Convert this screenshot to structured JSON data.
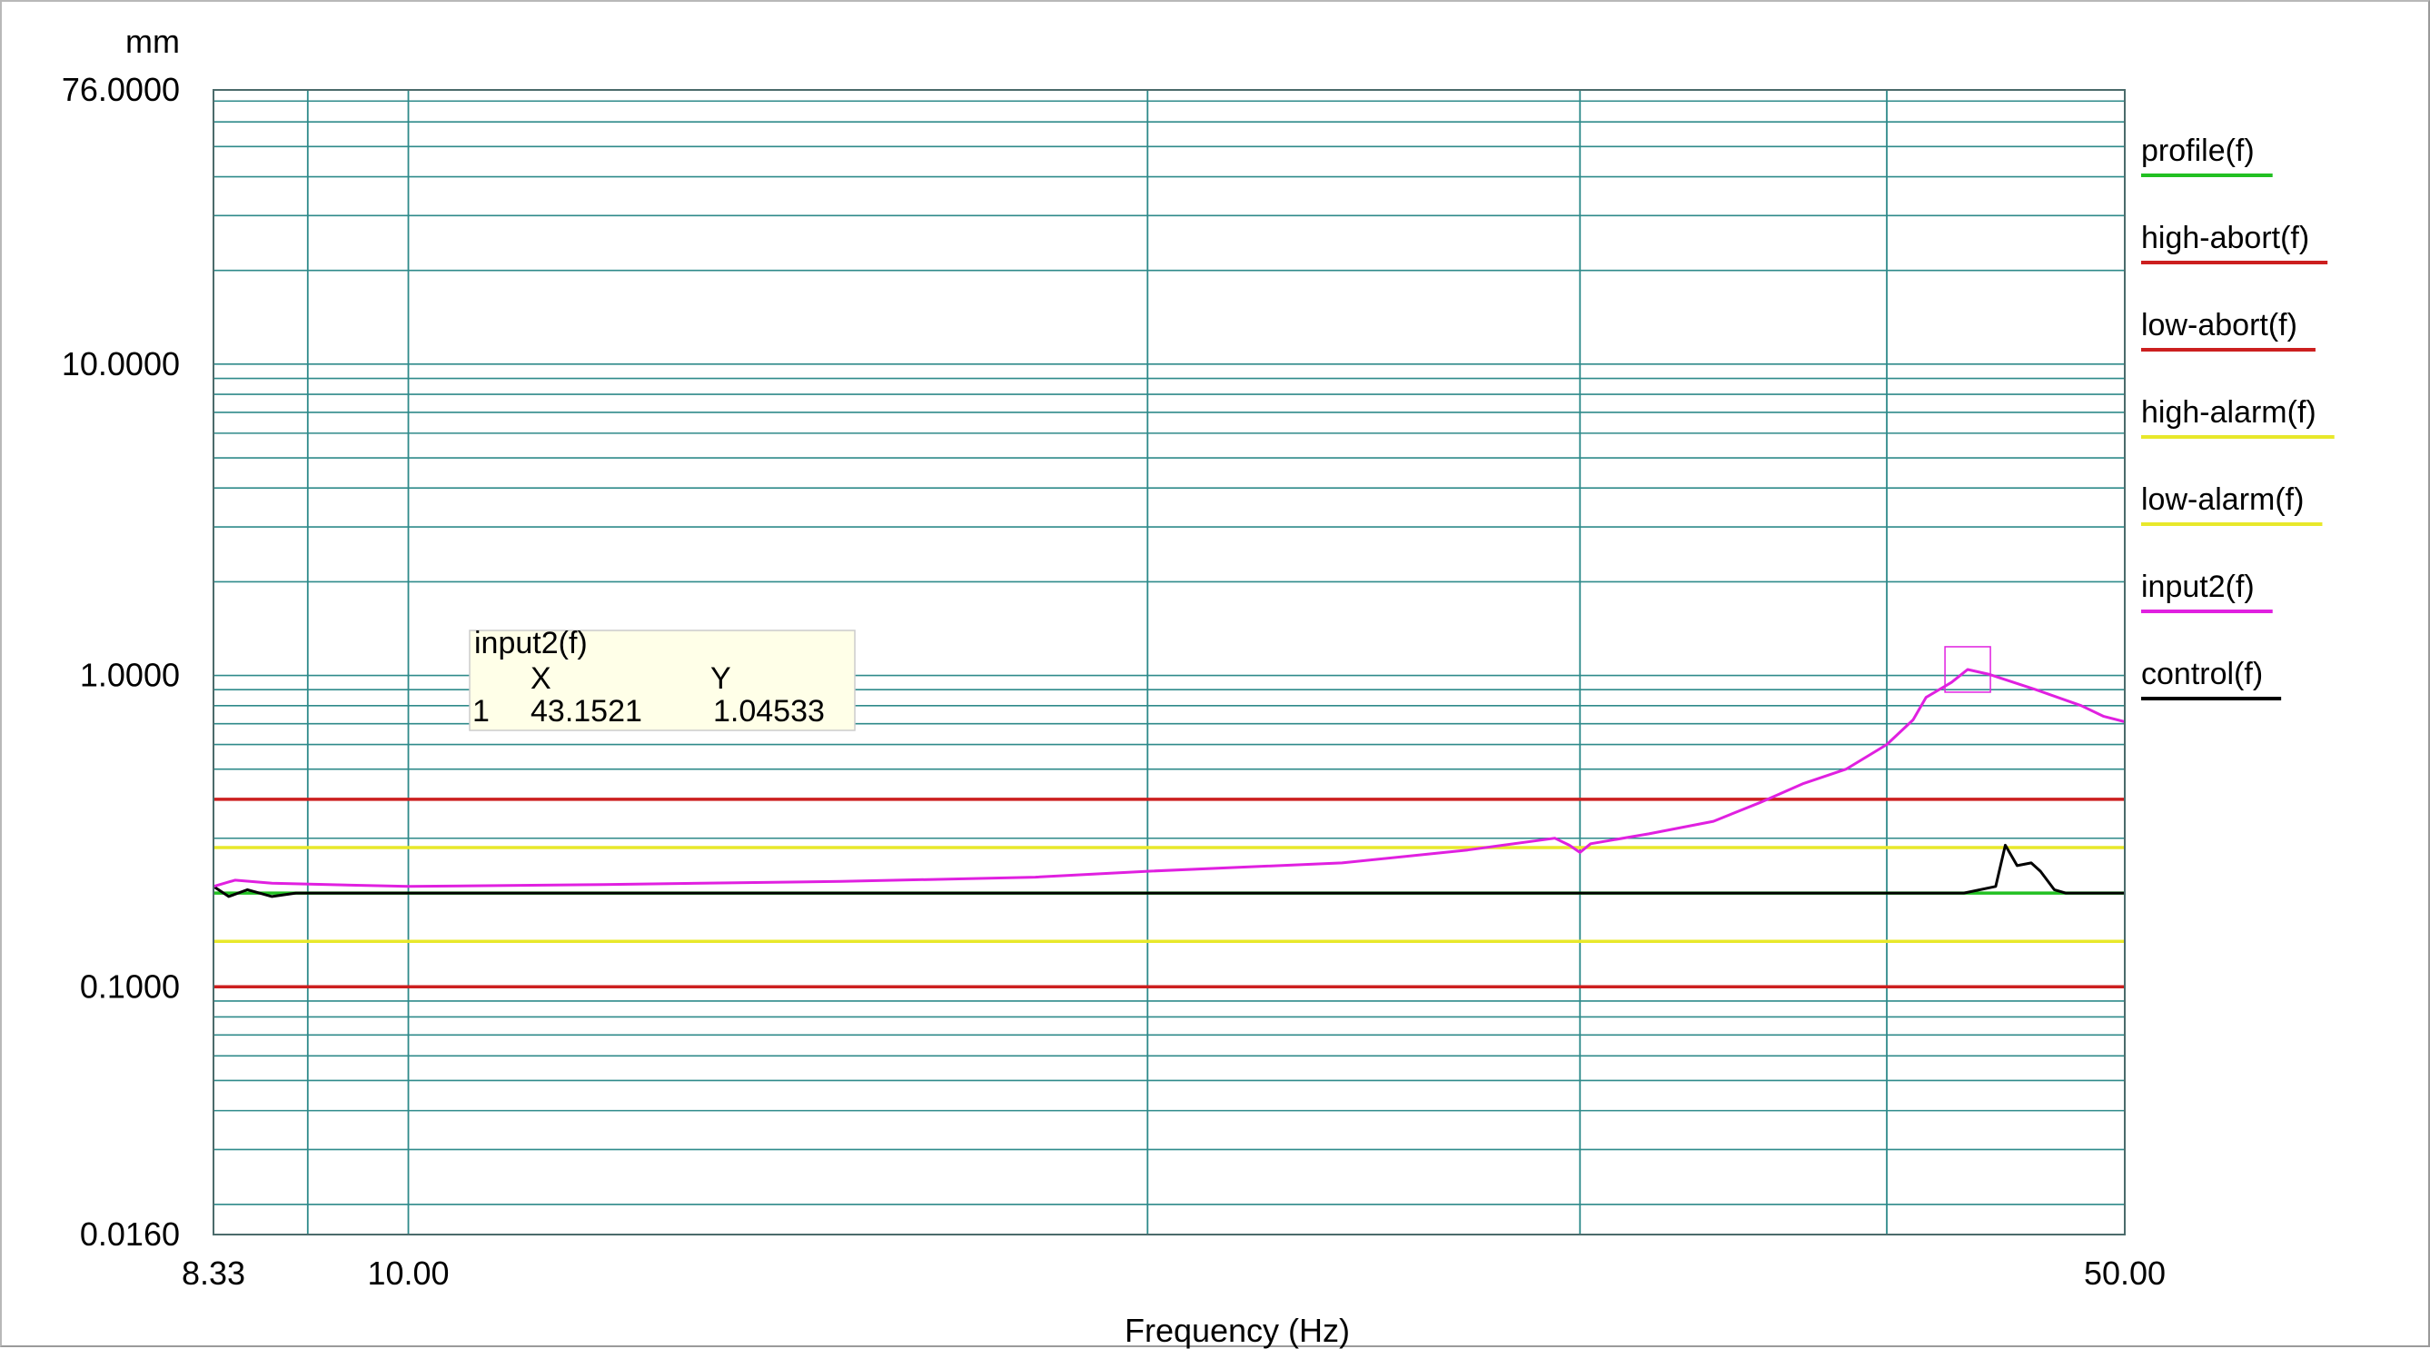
{
  "chart_data": {
    "type": "line",
    "title": "",
    "xlabel": "Frequency (Hz)",
    "ylabel": "mm",
    "x_scale": "log",
    "y_scale": "log",
    "xlim": [
      8.33,
      50.0
    ],
    "ylim": [
      0.016,
      76.0
    ],
    "grid": true,
    "legend_position": "right",
    "y_tick_labels": [
      "76.0000",
      "10.0000",
      "1.0000",
      "0.1000",
      "0.0160"
    ],
    "y_tick_values": [
      76.0,
      10.0,
      1.0,
      0.1,
      0.016
    ],
    "x_tick_labels": [
      "8.33",
      "10.00",
      "50.00"
    ],
    "x_tick_values": [
      8.33,
      10.0,
      50.0
    ],
    "x_grid_values": [
      9.1,
      10.0,
      20.0,
      30.0,
      40.0
    ],
    "series": [
      {
        "name": "profile(f)",
        "color": "#22c022",
        "x": [
          8.33,
          20.0,
          40.0,
          43.0,
          45.0,
          50.0
        ],
        "y": [
          0.2,
          0.2,
          0.2,
          0.2,
          0.2,
          0.2
        ]
      },
      {
        "name": "high-abort(f)",
        "color": "#cc1f1f",
        "x": [
          8.33,
          50.0
        ],
        "y": [
          0.4,
          0.4
        ]
      },
      {
        "name": "low-abort(f)",
        "color": "#cc1f1f",
        "x": [
          8.33,
          50.0
        ],
        "y": [
          0.1,
          0.1
        ]
      },
      {
        "name": "high-alarm(f)",
        "color": "#e8e82a",
        "x": [
          8.33,
          50.0
        ],
        "y": [
          0.28,
          0.28
        ]
      },
      {
        "name": "low-alarm(f)",
        "color": "#e8e82a",
        "x": [
          8.33,
          50.0
        ],
        "y": [
          0.14,
          0.14
        ]
      },
      {
        "name": "input2(f)",
        "color": "#e020e0",
        "x": [
          8.33,
          8.5,
          8.8,
          10.0,
          12.0,
          15.0,
          18.0,
          20.0,
          24.0,
          27.0,
          29.3,
          29.7,
          30.0,
          30.3,
          32.0,
          34.0,
          35.5,
          37.0,
          38.5,
          40.0,
          41.0,
          41.5,
          42.5,
          43.15,
          44.0,
          46.0,
          48.0,
          49.0,
          50.0
        ],
        "y": [
          0.21,
          0.22,
          0.215,
          0.21,
          0.213,
          0.218,
          0.225,
          0.235,
          0.25,
          0.275,
          0.3,
          0.285,
          0.27,
          0.288,
          0.31,
          0.34,
          0.39,
          0.45,
          0.5,
          0.6,
          0.72,
          0.85,
          0.95,
          1.04533,
          1.01,
          0.9,
          0.8,
          0.74,
          0.71
        ]
      },
      {
        "name": "control(f)",
        "color": "#000000",
        "x": [
          8.33,
          8.45,
          8.6,
          8.8,
          9.0,
          10.0,
          20.0,
          40.0,
          43.0,
          44.3,
          44.7,
          45.2,
          45.8,
          46.2,
          46.8,
          47.3,
          50.0
        ],
        "y": [
          0.21,
          0.195,
          0.205,
          0.195,
          0.2,
          0.2,
          0.2,
          0.2,
          0.2,
          0.21,
          0.285,
          0.245,
          0.25,
          0.235,
          0.205,
          0.2,
          0.2
        ]
      }
    ],
    "cursor_readout": {
      "series": "input2(f)",
      "col_x": "X",
      "col_y": "Y",
      "index": "1",
      "x": "43.1521",
      "y": "1.04533"
    }
  }
}
